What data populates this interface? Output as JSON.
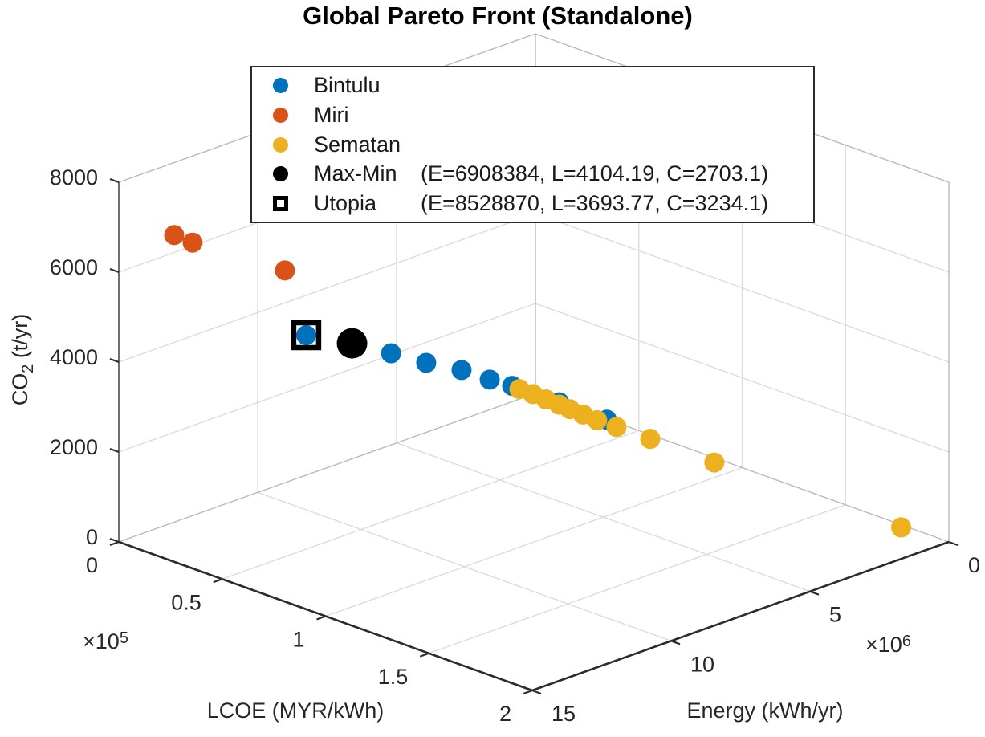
{
  "figure": {
    "background": "#ffffff",
    "text_color": "#262626",
    "grid_color": "#dcdcdc"
  },
  "chart_data": {
    "type": "scatter",
    "projection": "3d",
    "title": "Global Pareto Front (Standalone)",
    "grid": true,
    "legend_position": "top-center",
    "axes": {
      "x": {
        "label": "LCOE (MYR/kWh)",
        "unit_multiplier": {
          "base": "×10",
          "exp": "5"
        },
        "tick_labels": [
          "0",
          "0.5",
          "1",
          "1.5",
          "2"
        ],
        "tick_values": [
          0,
          0.5,
          1,
          1.5,
          2
        ],
        "scale": 100000,
        "range_raw": [
          0,
          200000
        ]
      },
      "y": {
        "label": "Energy (kWh/yr)",
        "unit_multiplier": {
          "base": "×10",
          "exp": "6"
        },
        "tick_labels": [
          "0",
          "5",
          "10",
          "15"
        ],
        "tick_values": [
          0,
          5,
          10,
          15
        ],
        "scale": 1000000,
        "range_raw": [
          0,
          15000000
        ],
        "direction": "zero-at-right"
      },
      "z": {
        "label": "CO₂ (t/yr)",
        "tick_labels": [
          "0",
          "2000",
          "4000",
          "6000",
          "8000"
        ],
        "tick_values": [
          0,
          2000,
          4000,
          6000,
          8000
        ],
        "range": [
          0,
          8000
        ]
      }
    },
    "series": [
      {
        "name": "Bintulu",
        "color": "#0072BD",
        "marker": "circle",
        "marker_radius": 12.5,
        "points_ELC": [
          [
            8528870,
            3693.77,
            3234.1
          ],
          [
            5600000,
            5400,
            2215
          ],
          [
            4350000,
            5600,
            1730
          ],
          [
            3100000,
            5900,
            1300
          ],
          [
            2100000,
            6100,
            870
          ],
          [
            1940000,
            14800,
            840
          ],
          [
            1600000,
            33000,
            700
          ],
          [
            1300000,
            52000,
            560
          ]
        ]
      },
      {
        "name": "Miri",
        "color": "#D95319",
        "marker": "circle",
        "marker_radius": 12.5,
        "points_ELC": [
          [
            13400000,
            5300,
            6560
          ],
          [
            12700000,
            4800,
            6230
          ],
          [
            9400000,
            5100,
            4890
          ]
        ]
      },
      {
        "name": "Sematan",
        "color": "#EDB120",
        "marker": "circle",
        "marker_radius": 12.5,
        "points_ELC": [
          [
            1880000,
            17500,
            800
          ],
          [
            1800000,
            23000,
            760
          ],
          [
            1740000,
            28500,
            720
          ],
          [
            1680000,
            34000,
            680
          ],
          [
            1620000,
            38500,
            640
          ],
          [
            1560000,
            44000,
            600
          ],
          [
            1500000,
            50000,
            560
          ],
          [
            1400000,
            58000,
            520
          ],
          [
            1300000,
            73000,
            480
          ],
          [
            1150000,
            102000,
            400
          ],
          [
            900000,
            189000,
            340
          ]
        ]
      },
      {
        "name": "Max-Min",
        "color": "#000000",
        "marker": "circle",
        "marker_radius": 19,
        "legend_detail": "(E=6908384, L=4104.19, C=2703.1)",
        "points_ELC": [
          [
            6908384,
            4104.19,
            2703.1
          ]
        ]
      },
      {
        "name": "Utopia",
        "color": "#000000",
        "marker": "square-open",
        "marker_size": 31,
        "stroke_width": 6.5,
        "legend_detail": "(E=8528870, L=3693.77, C=3234.1)",
        "points_ELC": [
          [
            8528870,
            3693.77,
            3234.1
          ]
        ]
      }
    ]
  }
}
